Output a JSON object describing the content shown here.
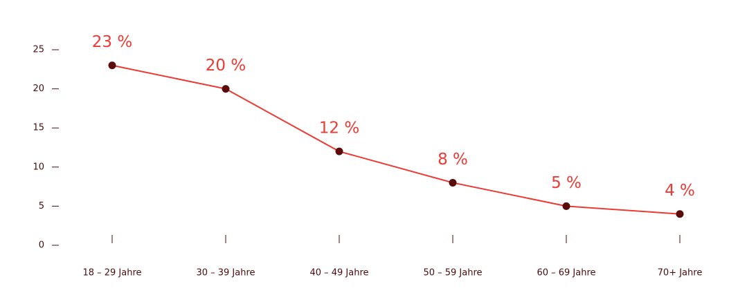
{
  "chart_data": {
    "type": "line",
    "categories": [
      "18 – 29 Jahre",
      "30 – 39 Jahre",
      "40 – 49 Jahre",
      "50 – 59 Jahre",
      "60 – 69 Jahre",
      "70+ Jahre"
    ],
    "values": [
      23,
      20,
      12,
      8,
      5,
      4
    ],
    "value_labels": [
      "23 %",
      "20 %",
      "12 %",
      "8 %",
      "5 %",
      "4 %"
    ],
    "color": "#ea3a33",
    "marker_color": "#5c0b0b",
    "ylim": [
      0,
      25
    ],
    "yticks": [
      0,
      5,
      10,
      15,
      20,
      25
    ],
    "grid": false
  }
}
